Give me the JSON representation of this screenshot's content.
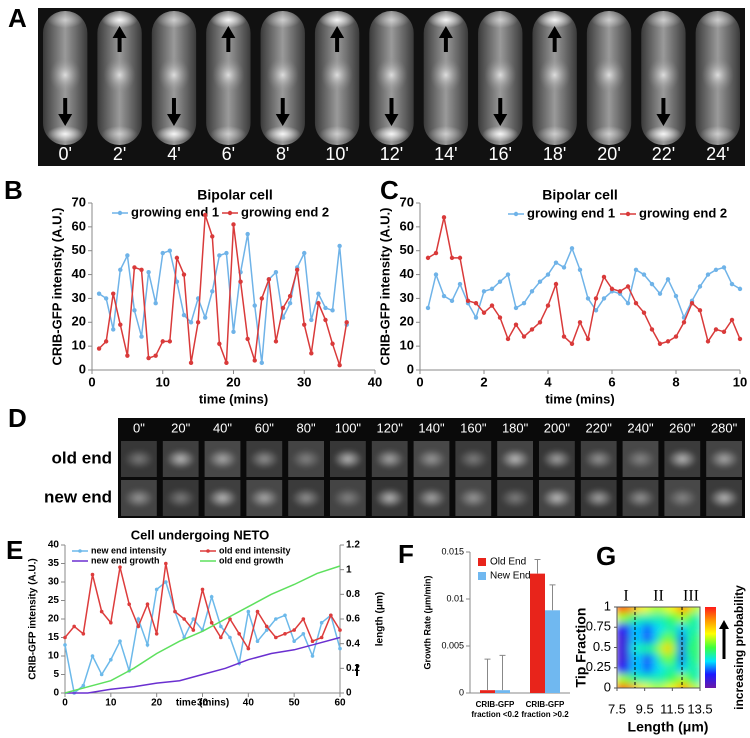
{
  "panel_labels": [
    "A",
    "B",
    "C",
    "D",
    "E",
    "F",
    "G"
  ],
  "panel_a": {
    "time_labels": [
      "0'",
      "2'",
      "4'",
      "6'",
      "8'",
      "10'",
      "12'",
      "14'",
      "16'",
      "18'",
      "20'",
      "22'",
      "24'"
    ]
  },
  "panel_d": {
    "time_labels": [
      "0\"",
      "20\"",
      "40\"",
      "60\"",
      "80\"",
      "100\"",
      "120\"",
      "140\"",
      "160\"",
      "180\"",
      "200\"",
      "220\"",
      "240\"",
      "260\"",
      "280\""
    ],
    "rows": [
      "old end",
      "new end"
    ]
  },
  "chart_data": [
    {
      "type": "line",
      "title": "Bipolar cell",
      "xlabel": "time (mins)",
      "ylabel": "CRIB-GFP intensity (A.U.)",
      "xlim": [
        0,
        40
      ],
      "xticks": [
        0,
        10,
        20,
        30,
        40
      ],
      "ylim": [
        0,
        70
      ],
      "yticks": [
        0,
        10,
        20,
        30,
        40,
        50,
        60,
        70
      ],
      "x": [
        1,
        2,
        3,
        4,
        5,
        6,
        7,
        8,
        9,
        10,
        11,
        12,
        13,
        14,
        15,
        16,
        17,
        18,
        19,
        20,
        21,
        22,
        23,
        24,
        25,
        26,
        27,
        28,
        29,
        30,
        31,
        32,
        33,
        34,
        35,
        36
      ],
      "series": [
        {
          "name": "growing end 1",
          "color": "#6fb3e8",
          "marker": true,
          "values": [
            32,
            30,
            17,
            42,
            48,
            25,
            14,
            41,
            28,
            49,
            50,
            37,
            23,
            20,
            30,
            22,
            33,
            48,
            49,
            16,
            41,
            57,
            27,
            3,
            38,
            41,
            22,
            28,
            43,
            49,
            21,
            32,
            26,
            25,
            52,
            19
          ]
        },
        {
          "name": "growing end 2",
          "color": "#d93a3a",
          "marker": true,
          "values": [
            9,
            12,
            32,
            19,
            6,
            43,
            42,
            5,
            6,
            12,
            12,
            47,
            40,
            3,
            20,
            65,
            56,
            11,
            3,
            61,
            37,
            13,
            4,
            30,
            38,
            12,
            26,
            31,
            42,
            19,
            7,
            28,
            21,
            11,
            2,
            20
          ]
        }
      ]
    },
    {
      "type": "line",
      "title": "Bipolar cell",
      "xlabel": "time (mins)",
      "ylabel": "CRIB-GFP intensity (A.U.)",
      "xlim": [
        0,
        10
      ],
      "xticks": [
        0,
        2,
        4,
        6,
        8,
        10
      ],
      "ylim": [
        0,
        70
      ],
      "yticks": [
        0,
        10,
        20,
        30,
        40,
        50,
        60,
        70
      ],
      "x": [
        0.25,
        0.5,
        0.75,
        1,
        1.25,
        1.5,
        1.75,
        2,
        2.25,
        2.5,
        2.75,
        3,
        3.25,
        3.5,
        3.75,
        4,
        4.25,
        4.5,
        4.75,
        5,
        5.25,
        5.5,
        5.75,
        6,
        6.25,
        6.5,
        6.75,
        7,
        7.25,
        7.5,
        7.75,
        8,
        8.25,
        8.5,
        8.75,
        9,
        9.25,
        9.5,
        9.75,
        10
      ],
      "series": [
        {
          "name": "growing end 1",
          "color": "#6fb3e8",
          "marker": true,
          "values": [
            26,
            40,
            31,
            29,
            36,
            28,
            22,
            33,
            34,
            37,
            40,
            26,
            28,
            33,
            37,
            40,
            45,
            43,
            51,
            42,
            30,
            25,
            30,
            33,
            32,
            28,
            42,
            40,
            36,
            32,
            38,
            31,
            22,
            29,
            35,
            40,
            42,
            43,
            36,
            34
          ]
        },
        {
          "name": "growing end 2",
          "color": "#d93a3a",
          "marker": true,
          "values": [
            47,
            49,
            64,
            47,
            47,
            29,
            28,
            24,
            27,
            22,
            13,
            19,
            14,
            17,
            20,
            27,
            36,
            14,
            11,
            20,
            13,
            30,
            39,
            34,
            33,
            35,
            28,
            24,
            17,
            11,
            12,
            14,
            20,
            28,
            25,
            12,
            17,
            16,
            21,
            13
          ]
        }
      ]
    },
    {
      "type": "line",
      "title": "Cell undergoing NETO",
      "xlabel": "time (mins)",
      "ylabel": "CRIB-GFP intensity (A.U.)",
      "y2label": "length (μm)",
      "xlim": [
        0,
        60
      ],
      "xticks": [
        0,
        10,
        20,
        30,
        40,
        50,
        60
      ],
      "ylim": [
        0,
        40
      ],
      "yticks": [
        0,
        5,
        10,
        15,
        20,
        25,
        30,
        35,
        40
      ],
      "y2lim": [
        0,
        1.2
      ],
      "y2ticks": [
        0,
        0.2,
        0.4,
        0.6,
        0.8,
        1,
        1.2
      ],
      "series": [
        {
          "name": "new end intensity",
          "color": "#6cb9ea",
          "marker": true,
          "x": [
            0,
            2,
            4,
            6,
            8,
            10,
            12,
            14,
            16,
            18,
            20,
            22,
            24,
            26,
            28,
            30,
            32,
            34,
            36,
            38,
            40,
            42,
            44,
            46,
            48,
            50,
            52,
            54,
            56,
            58,
            60
          ],
          "values": [
            13,
            0,
            2,
            10,
            5,
            9,
            14,
            6,
            20,
            13,
            28,
            30,
            22,
            15,
            20,
            17,
            26,
            18,
            15,
            8,
            22,
            14,
            17,
            20,
            21,
            14,
            16,
            10,
            19,
            21,
            12
          ]
        },
        {
          "name": "old end intensity",
          "color": "#dd3c3c",
          "marker": true,
          "x": [
            0,
            2,
            4,
            6,
            8,
            10,
            12,
            14,
            16,
            18,
            20,
            22,
            24,
            26,
            28,
            30,
            32,
            34,
            36,
            38,
            40,
            42,
            44,
            46,
            48,
            50,
            52,
            54,
            56,
            58,
            60
          ],
          "values": [
            15,
            18,
            16,
            32,
            22,
            19,
            34,
            24,
            18,
            24,
            16,
            35,
            22,
            20,
            17,
            28,
            19,
            15,
            20,
            16,
            12,
            22,
            18,
            15,
            16,
            17,
            20,
            14,
            15,
            21,
            17
          ]
        },
        {
          "name": "new end growth",
          "color": "#6a2fd0",
          "marker": false,
          "axis": "y2",
          "x": [
            0,
            5,
            10,
            15,
            20,
            25,
            30,
            35,
            40,
            45,
            50,
            55,
            60
          ],
          "values": [
            0,
            0,
            0.03,
            0.05,
            0.08,
            0.1,
            0.15,
            0.2,
            0.27,
            0.32,
            0.35,
            0.4,
            0.45
          ]
        },
        {
          "name": "old end growth",
          "color": "#5ee05e",
          "marker": false,
          "axis": "y2",
          "x": [
            0,
            5,
            10,
            15,
            20,
            25,
            30,
            35,
            40,
            45,
            50,
            55,
            60
          ],
          "values": [
            0,
            0.05,
            0.1,
            0.2,
            0.32,
            0.42,
            0.5,
            0.6,
            0.7,
            0.8,
            0.88,
            0.97,
            1.03
          ]
        }
      ]
    },
    {
      "type": "bar",
      "ylabel": "Growth Rate (μm/min)",
      "ylim": [
        0,
        0.015
      ],
      "yticks": [
        0,
        0.005,
        0.01,
        0.015
      ],
      "categories": [
        [
          "CRIB-GFP",
          "fraction <0.2"
        ],
        [
          "CRIB-GFP",
          "fraction >0.2"
        ]
      ],
      "series": [
        {
          "name": "Old End",
          "color": "#e8241b",
          "values": [
            0.0003,
            0.0127
          ],
          "errors": [
            0.0033,
            0.0015
          ]
        },
        {
          "name": "New End",
          "color": "#70b8f0",
          "values": [
            0.0003,
            0.0088
          ],
          "errors": [
            0.0037,
            0.0027
          ]
        }
      ]
    },
    {
      "type": "heatmap",
      "xlabel": "Length (μm)",
      "ylabel": "Tip Fraction",
      "colorbar_label": "increasing probability",
      "xlim": [
        7.5,
        13.5
      ],
      "xticks": [
        7.5,
        9.5,
        11.5,
        13.5
      ],
      "ylim": [
        0,
        1
      ],
      "yticks": [
        0,
        0.25,
        0.5,
        0.75,
        1
      ],
      "regions": [
        "I",
        "II",
        "III"
      ],
      "boundaries": [
        8.8,
        12.2
      ],
      "z": [
        [
          0.95,
          0.9,
          0.8,
          0.7,
          0.65,
          0.6,
          0.6,
          0.65,
          0.7,
          0.85,
          0.75,
          0.6
        ],
        [
          0.6,
          0.55,
          0.45,
          0.4,
          0.4,
          0.4,
          0.4,
          0.45,
          0.5,
          0.6,
          0.5,
          0.4
        ],
        [
          0.15,
          0.15,
          0.3,
          0.3,
          0.2,
          0.3,
          0.35,
          0.4,
          0.4,
          0.3,
          0.4,
          0.4
        ],
        [
          0.1,
          0.1,
          0.3,
          0.3,
          0.15,
          0.3,
          0.45,
          0.55,
          0.45,
          0.2,
          0.4,
          0.45
        ],
        [
          0.1,
          0.1,
          0.35,
          0.4,
          0.4,
          0.45,
          0.6,
          0.75,
          0.55,
          0.2,
          0.45,
          0.45
        ],
        [
          0.1,
          0.1,
          0.3,
          0.3,
          0.15,
          0.3,
          0.45,
          0.55,
          0.45,
          0.2,
          0.4,
          0.45
        ],
        [
          0.15,
          0.15,
          0.3,
          0.3,
          0.2,
          0.3,
          0.35,
          0.4,
          0.4,
          0.3,
          0.4,
          0.4
        ],
        [
          0.6,
          0.55,
          0.45,
          0.4,
          0.4,
          0.4,
          0.4,
          0.45,
          0.5,
          0.6,
          0.5,
          0.4
        ],
        [
          0.95,
          0.9,
          0.8,
          0.7,
          0.65,
          0.6,
          0.6,
          0.65,
          0.7,
          0.85,
          0.75,
          0.6
        ]
      ]
    }
  ]
}
